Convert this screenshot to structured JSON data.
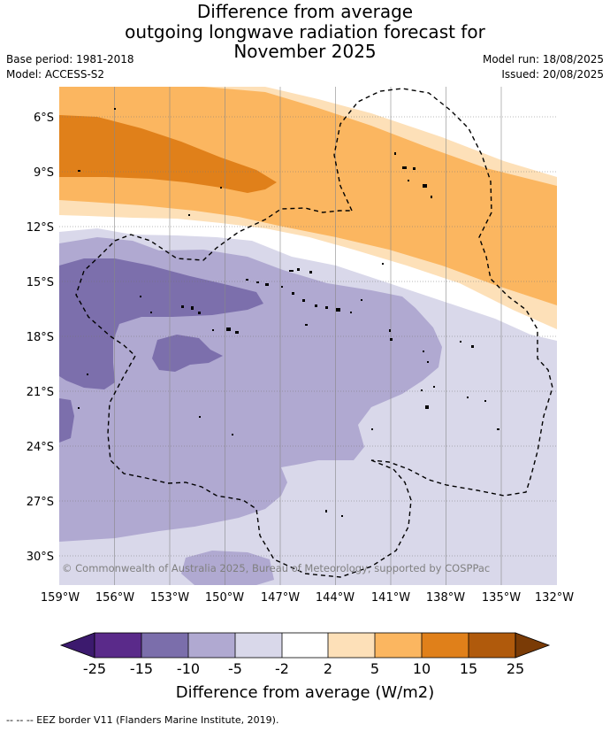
{
  "header": {
    "title_lines": [
      "Difference from average",
      "outgoing longwave radiation forecast for",
      "November 2025"
    ],
    "base_period": "Base period: 1981-2018",
    "model": "Model: ACCESS-S2",
    "model_run": "Model run: 18/08/2025",
    "issued": "Issued: 20/08/2025"
  },
  "map": {
    "lat_labels": [
      "6°S",
      "9°S",
      "12°S",
      "15°S",
      "18°S",
      "21°S",
      "24°S",
      "27°S",
      "30°S"
    ],
    "lon_labels": [
      "159°W",
      "156°W",
      "153°W",
      "150°W",
      "147°W",
      "144°W",
      "141°W",
      "138°W",
      "135°W",
      "132°W"
    ],
    "copyright": "© Commonwealth of Australia 2025, Bureau of Meteorology, supported by COSPPac",
    "color_tiers": {
      "neg_strong": "#7c6fac",
      "neg_medium": "#b0a9d1",
      "neg_weak": "#d9d8ea",
      "neutral": "#ffffff",
      "pos_weak": "#fde0b8",
      "pos_medium": "#fbb660",
      "pos_strong": "#e0801a"
    }
  },
  "colorbar": {
    "ticks": [
      "-25",
      "-15",
      "-10",
      "-5",
      "-2",
      "2",
      "5",
      "10",
      "15",
      "25"
    ],
    "colors": [
      "#3c1a6e",
      "#5a2a8a",
      "#7b6eab",
      "#b0a9d1",
      "#d9d8ea",
      "#ffffff",
      "#fde0b8",
      "#fbb660",
      "#e0801a",
      "#b05a0c",
      "#7a3b06"
    ],
    "label": "Difference from average (W/m2)"
  },
  "footer": {
    "legend": "--  --  -- EEZ border V11 (Flanders Marine Institute, 2019)."
  }
}
